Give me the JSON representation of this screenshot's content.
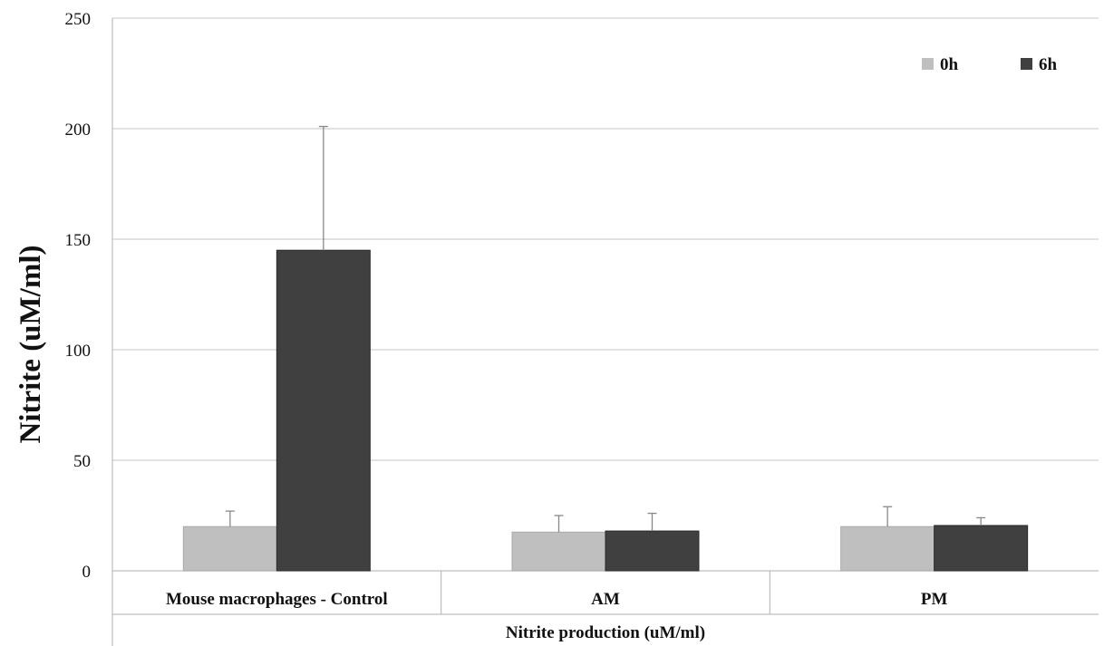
{
  "chart_data": {
    "type": "bar",
    "title": "",
    "xlabel": "Nitrite production (uM/ml)",
    "ylabel": "Nitrite (uM/ml)",
    "ylim": [
      0,
      250
    ],
    "yticks": [
      0,
      50,
      100,
      150,
      200,
      250
    ],
    "grid": true,
    "legend_position": "top-right",
    "categories": [
      "Mouse macrophages - Control",
      "AM",
      "PM"
    ],
    "series": [
      {
        "name": "0h",
        "color": "#bfbfbf",
        "values": [
          20,
          17.5,
          20
        ],
        "errors": [
          7,
          7.5,
          9
        ]
      },
      {
        "name": "6h",
        "color": "#404040",
        "values": [
          145,
          18,
          20.5
        ],
        "errors": [
          56,
          8,
          3.5
        ]
      }
    ]
  }
}
